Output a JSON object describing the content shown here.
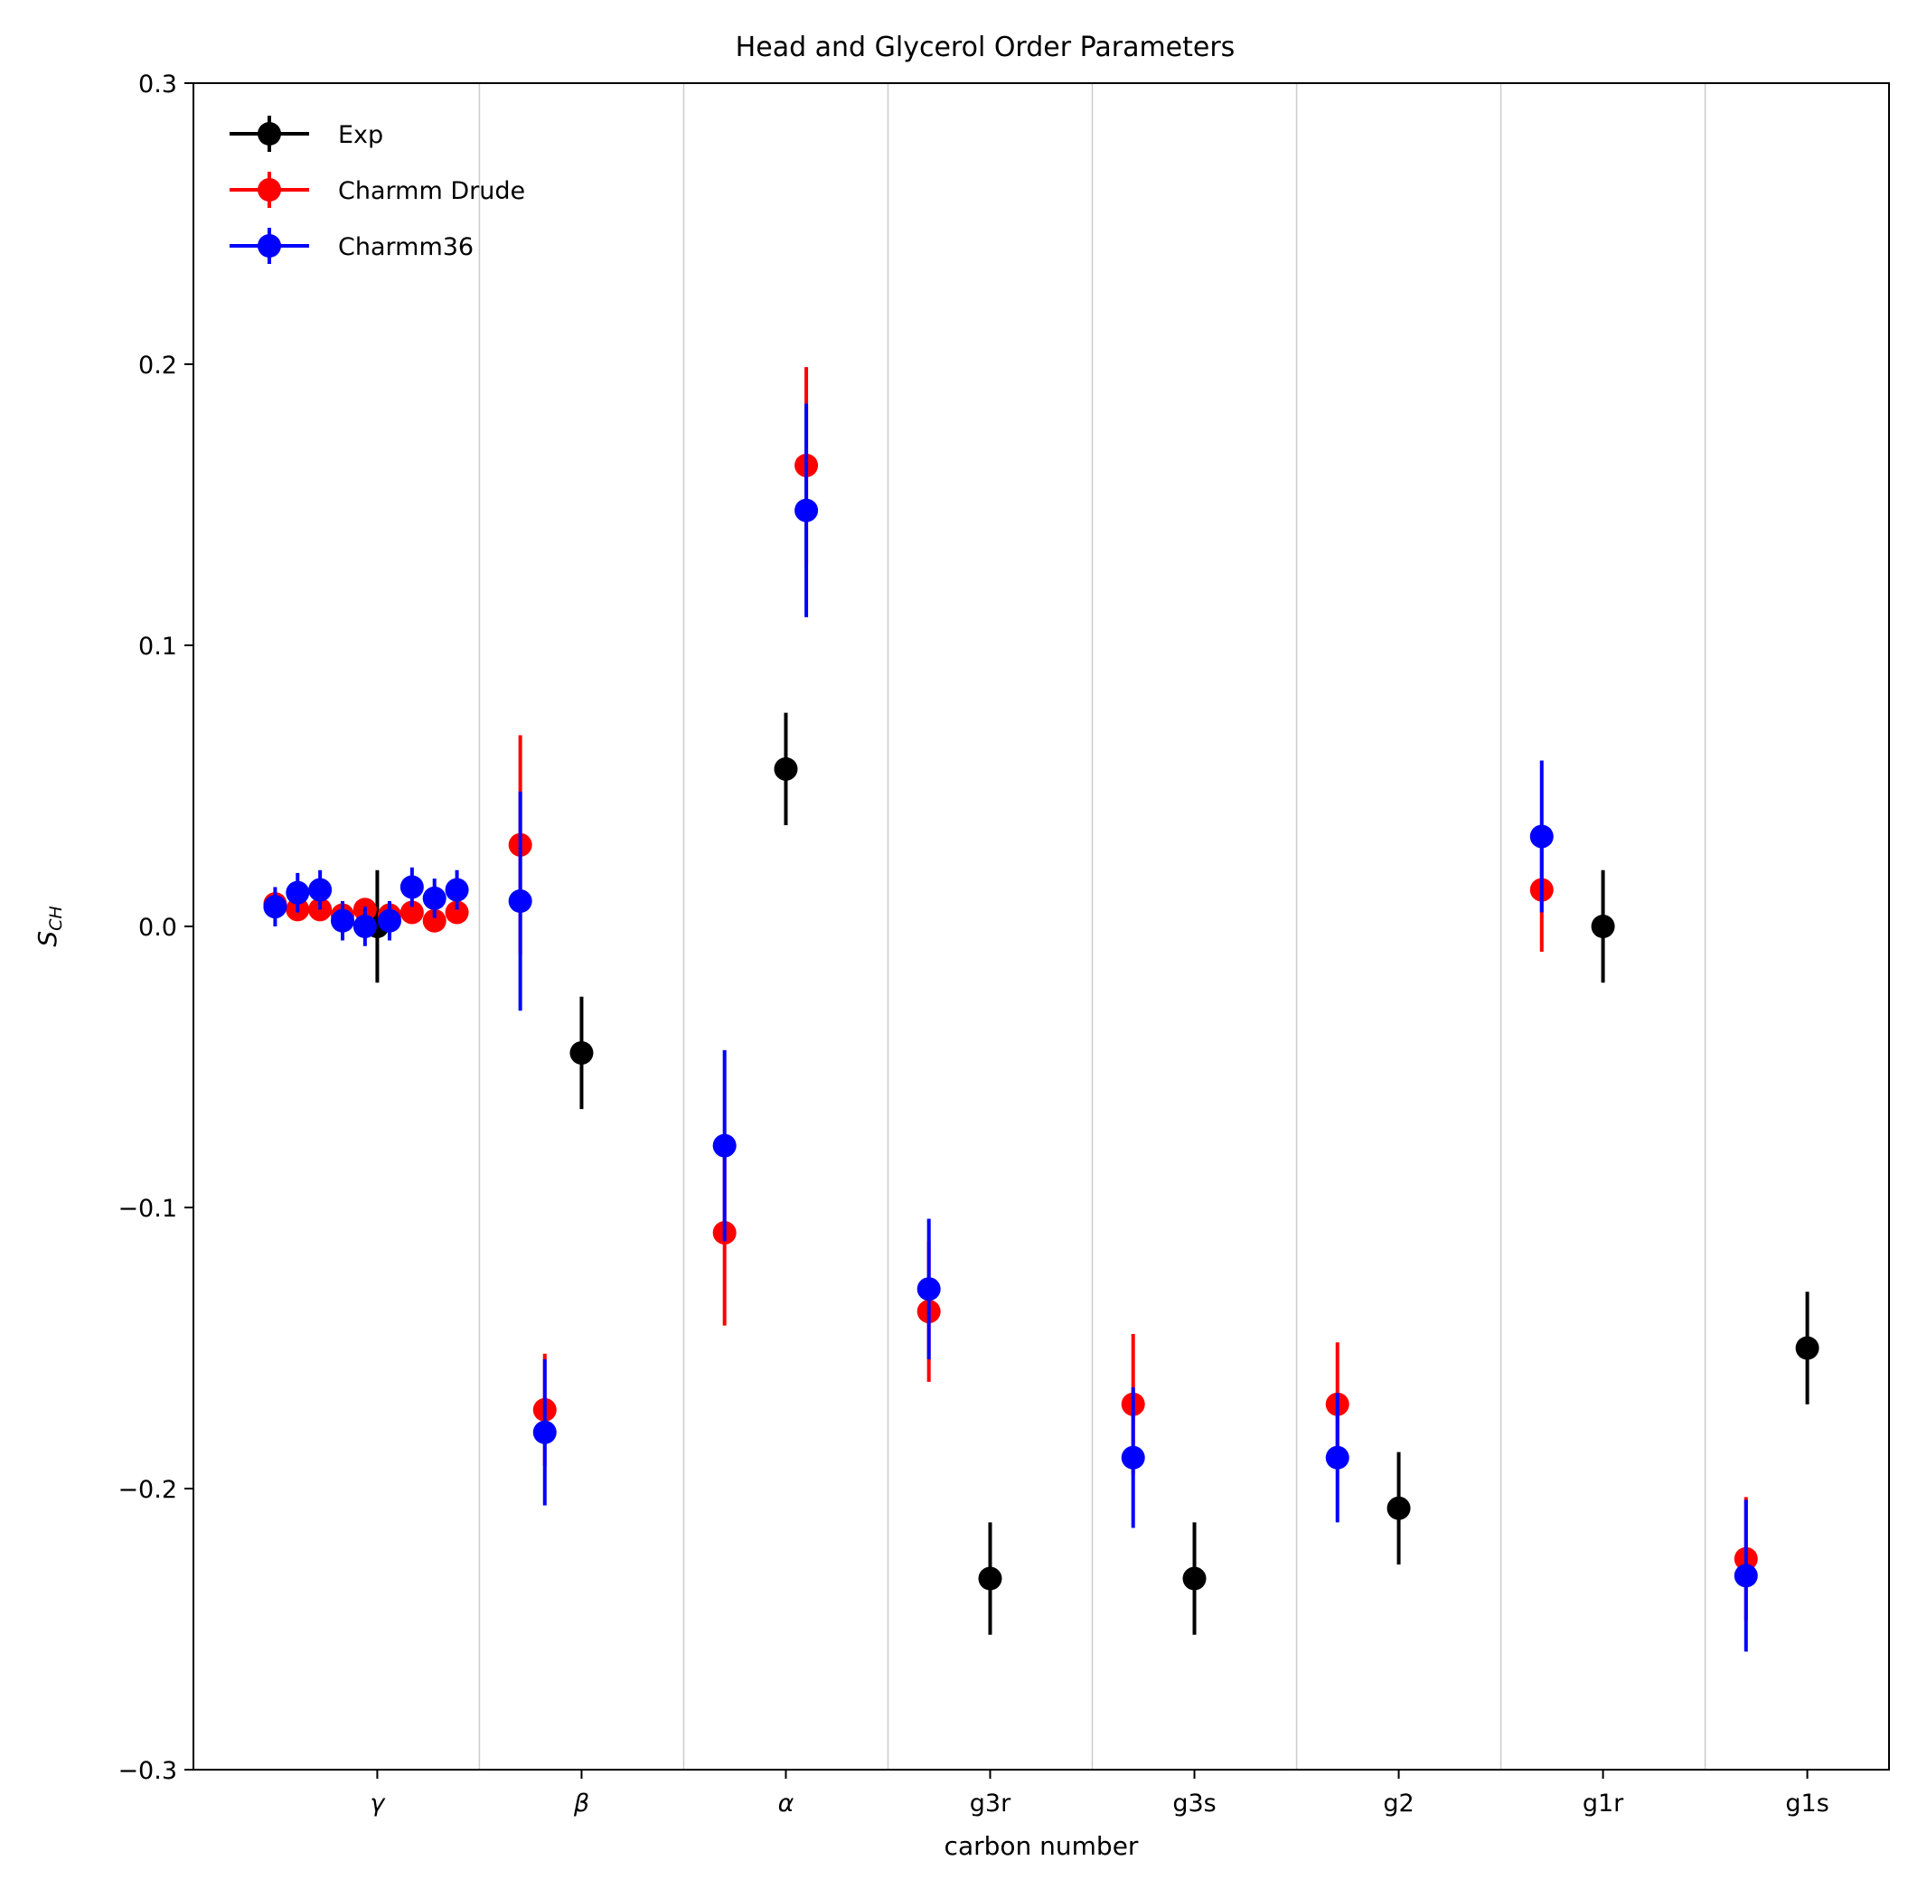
{
  "chart_data": {
    "type": "scatter",
    "title": "Head and Glycerol Order Parameters",
    "xlabel": "carbon number",
    "ylabel": "S",
    "ylabel_sub": "CH",
    "ylim": [
      -0.3,
      0.3
    ],
    "xlim": [
      -0.9,
      7.4
    ],
    "yticks": [
      -0.3,
      -0.2,
      -0.1,
      0.0,
      0.1,
      0.2,
      0.3
    ],
    "ytick_labels": [
      "−0.3",
      "−0.2",
      "−0.1",
      "0.0",
      "0.1",
      "0.2",
      "0.3"
    ],
    "categories": [
      "γ",
      "β",
      "α",
      "g3r",
      "g3s",
      "g2",
      "g1r",
      "g1s"
    ],
    "grid": "vertical separators",
    "legend": "top-left",
    "series": [
      {
        "name": "Exp",
        "color": "#000000",
        "points": [
          {
            "x": 0.0,
            "y": 0.0,
            "err": 0.02
          },
          {
            "x": 1.0,
            "y": -0.045,
            "err": 0.02
          },
          {
            "x": 2.0,
            "y": 0.056,
            "err": 0.02
          },
          {
            "x": 3.0,
            "y": -0.232,
            "err": 0.02
          },
          {
            "x": 4.0,
            "y": -0.232,
            "err": 0.02
          },
          {
            "x": 5.0,
            "y": -0.207,
            "err": 0.02
          },
          {
            "x": 6.0,
            "y": 0.0,
            "err": 0.02
          },
          {
            "x": 7.0,
            "y": -0.15,
            "err": 0.02
          }
        ]
      },
      {
        "name": "Charmm Drude",
        "color": "#ff0000",
        "points": [
          {
            "x": -0.5,
            "y": 0.008,
            "err": 0.004
          },
          {
            "x": -0.39,
            "y": 0.006,
            "err": 0.004
          },
          {
            "x": -0.28,
            "y": 0.006,
            "err": 0.004
          },
          {
            "x": -0.17,
            "y": 0.004,
            "err": 0.004
          },
          {
            "x": -0.06,
            "y": 0.006,
            "err": 0.004
          },
          {
            "x": 0.06,
            "y": 0.004,
            "err": 0.004
          },
          {
            "x": 0.17,
            "y": 0.005,
            "err": 0.004
          },
          {
            "x": 0.28,
            "y": 0.002,
            "err": 0.004
          },
          {
            "x": 0.39,
            "y": 0.005,
            "err": 0.004
          },
          {
            "x": 0.7,
            "y": 0.029,
            "err": 0.039
          },
          {
            "x": 0.82,
            "y": -0.172,
            "err": 0.02
          },
          {
            "x": 1.7,
            "y": -0.109,
            "err": 0.033
          },
          {
            "x": 2.1,
            "y": 0.164,
            "err": 0.035
          },
          {
            "x": 2.7,
            "y": -0.137,
            "err": 0.025
          },
          {
            "x": 3.7,
            "y": -0.17,
            "err": 0.025
          },
          {
            "x": 4.7,
            "y": -0.17,
            "err": 0.022
          },
          {
            "x": 5.7,
            "y": 0.013,
            "err": 0.022
          },
          {
            "x": 6.7,
            "y": -0.225,
            "err": 0.022
          }
        ]
      },
      {
        "name": "Charmm36",
        "color": "#0000ff",
        "points": [
          {
            "x": -0.5,
            "y": 0.007,
            "err": 0.007
          },
          {
            "x": -0.39,
            "y": 0.012,
            "err": 0.007
          },
          {
            "x": -0.28,
            "y": 0.013,
            "err": 0.007
          },
          {
            "x": -0.17,
            "y": 0.002,
            "err": 0.007
          },
          {
            "x": -0.06,
            "y": 0.0,
            "err": 0.007
          },
          {
            "x": 0.06,
            "y": 0.002,
            "err": 0.007
          },
          {
            "x": 0.17,
            "y": 0.014,
            "err": 0.007
          },
          {
            "x": 0.28,
            "y": 0.01,
            "err": 0.007
          },
          {
            "x": 0.39,
            "y": 0.013,
            "err": 0.007
          },
          {
            "x": 0.7,
            "y": 0.009,
            "err": 0.039
          },
          {
            "x": 0.82,
            "y": -0.18,
            "err": 0.026
          },
          {
            "x": 1.7,
            "y": -0.078,
            "err": 0.034
          },
          {
            "x": 2.1,
            "y": 0.148,
            "err": 0.038
          },
          {
            "x": 2.7,
            "y": -0.129,
            "err": 0.025
          },
          {
            "x": 3.7,
            "y": -0.189,
            "err": 0.025
          },
          {
            "x": 4.7,
            "y": -0.189,
            "err": 0.023
          },
          {
            "x": 5.7,
            "y": 0.032,
            "err": 0.027
          },
          {
            "x": 6.7,
            "y": -0.231,
            "err": 0.027
          }
        ]
      }
    ]
  }
}
